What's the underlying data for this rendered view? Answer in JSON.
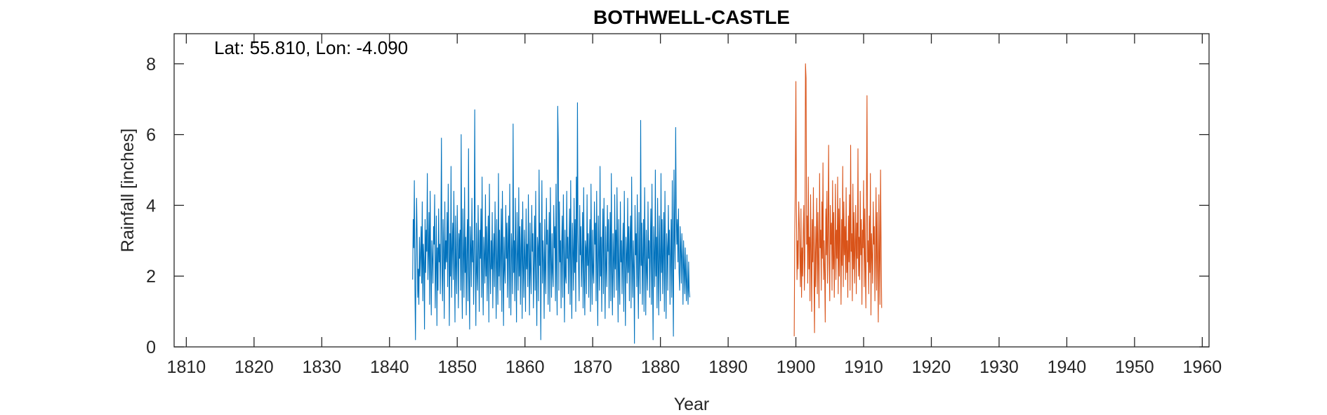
{
  "chart_data": {
    "type": "line",
    "title": "BOTHWELL-CASTLE",
    "annotation": "Lat: 55.810, Lon: -4.090",
    "xlabel": "Year",
    "ylabel": "Rainfall [inches]",
    "xlim": [
      1808.2,
      1961
    ],
    "ylim": [
      0,
      8.85
    ],
    "xticks": [
      1810,
      1820,
      1830,
      1840,
      1850,
      1860,
      1870,
      1880,
      1890,
      1900,
      1910,
      1920,
      1930,
      1940,
      1950,
      1960
    ],
    "yticks": [
      0,
      2,
      4,
      6,
      8
    ],
    "grid": false,
    "series": [
      {
        "color": "#0072BD",
        "monthly_start": [
          1843,
          6
        ],
        "values": [
          1.9,
          3.6,
          2.8,
          4.7,
          1.7,
          0.2,
          2.6,
          4.2,
          3.1,
          1.4,
          2.2,
          1.2,
          3.1,
          2.0,
          2.6,
          3.4,
          1.8,
          4.1,
          1.3,
          2.9,
          2.4,
          0.5,
          3.6,
          2.1,
          3.3,
          2.7,
          4.9,
          1.9,
          2.6,
          3.8,
          1.2,
          4.4,
          2.3,
          0.9,
          3.0,
          2.5,
          1.8,
          3.4,
          2.9,
          4.3,
          1.1,
          2.2,
          3.7,
          0.6,
          2.8,
          1.6,
          3.9,
          2.4,
          2.9,
          1.5,
          3.3,
          5.9,
          2.1,
          1.3,
          3.6,
          2.7,
          0.8,
          4.1,
          2.2,
          3.0,
          2.4,
          3.8,
          1.7,
          4.6,
          2.9,
          0.6,
          3.2,
          2.0,
          5.1,
          1.4,
          2.7,
          3.5,
          1.9,
          4.4,
          2.6,
          0.7,
          3.7,
          2.3,
          1.5,
          4.0,
          2.8,
          1.1,
          3.2,
          2.5,
          3.3,
          1.6,
          6.0,
          2.2,
          0.8,
          3.9,
          2.6,
          1.4,
          4.5,
          2.1,
          3.1,
          0.9,
          2.7,
          3.6,
          1.3,
          5.6,
          2.0,
          0.5,
          3.4,
          2.8,
          1.7,
          4.2,
          2.4,
          3.0,
          1.2,
          2.9,
          6.7,
          2.3,
          0.6,
          3.5,
          2.1,
          1.6,
          4.0,
          2.7,
          1.0,
          3.3,
          2.5,
          3.9,
          1.4,
          4.8,
          2.2,
          0.9,
          3.1,
          2.6,
          1.8,
          4.3,
          2.0,
          3.4,
          1.3,
          2.8,
          3.7,
          0.7,
          4.6,
          2.4,
          1.5,
          3.0,
          2.2,
          3.8,
          1.1,
          2.6,
          3.2,
          1.7,
          4.1,
          2.5,
          0.8,
          3.6,
          2.3,
          1.2,
          4.9,
          2.0,
          3.3,
          1.6,
          2.7,
          3.9,
          1.0,
          4.4,
          2.6,
          0.6,
          3.1,
          2.2,
          1.8,
          4.0,
          2.5,
          3.5,
          1.4,
          2.9,
          3.7,
          1.1,
          4.6,
          2.3,
          0.9,
          3.2,
          2.7,
          1.5,
          6.3,
          2.1,
          3.0,
          1.3,
          4.2,
          2.4,
          0.7,
          3.8,
          2.6,
          1.6,
          4.5,
          2.0,
          3.4,
          1.2,
          2.8,
          3.6,
          0.8,
          4.1,
          2.3,
          1.4,
          3.3,
          2.5,
          1.0,
          3.9,
          2.2,
          2.9,
          1.7,
          4.3,
          2.6,
          0.9,
          3.5,
          2.1,
          1.5,
          4.0,
          2.7,
          3.2,
          1.1,
          2.4,
          3.7,
          1.6,
          4.4,
          2.0,
          0.6,
          3.1,
          2.8,
          1.3,
          5.0,
          2.3,
          3.5,
          0.2,
          2.6,
          4.7,
          1.8,
          3.0,
          2.4,
          0.8,
          3.6,
          2.2,
          1.5,
          4.2,
          2.9,
          3.3,
          1.2,
          2.7,
          3.8,
          1.0,
          4.5,
          2.5,
          1.4,
          3.2,
          2.1,
          1.7,
          4.0,
          2.8,
          3.4,
          1.3,
          4.6,
          2.2,
          0.9,
          6.8,
          5.8,
          1.6,
          4.1,
          2.4,
          3.0,
          1.1,
          2.9,
          3.7,
          1.4,
          4.3,
          2.6,
          0.7,
          3.3,
          2.0,
          1.8,
          4.4,
          2.5,
          3.1,
          1.5,
          2.8,
          3.9,
          1.2,
          4.7,
          2.3,
          0.8,
          3.5,
          2.7,
          1.6,
          4.2,
          2.1,
          3.6,
          1.0,
          4.8,
          2.4,
          6.9,
          3.2,
          2.2,
          1.3,
          4.0,
          2.6,
          3.4,
          1.7,
          2.5,
          3.8,
          1.1,
          4.5,
          2.0,
          0.9,
          3.0,
          2.8,
          1.5,
          4.3,
          2.3,
          3.2,
          1.4,
          2.7,
          3.6,
          1.0,
          4.6,
          2.5,
          1.2,
          3.3,
          2.1,
          1.8,
          4.1,
          2.9,
          3.5,
          1.3,
          4.4,
          2.2,
          0.6,
          3.7,
          2.6,
          1.6,
          5.1,
          2.0,
          3.1,
          1.0,
          2.8,
          3.9,
          1.5,
          4.2,
          2.4,
          0.8,
          3.4,
          2.3,
          1.7,
          4.0,
          2.7,
          3.6,
          1.1,
          2.6,
          3.8,
          1.3,
          4.9,
          2.1,
          0.9,
          3.2,
          2.5,
          1.4,
          4.3,
          2.2,
          3.3,
          1.6,
          4.5,
          2.8,
          0.7,
          3.6,
          2.0,
          1.2,
          4.1,
          2.4,
          3.0,
          1.5,
          2.7,
          3.5,
          1.0,
          4.4,
          2.3,
          0.6,
          3.1,
          2.6,
          1.8,
          4.2,
          2.1,
          3.4,
          1.3,
          2.9,
          3.7,
          1.1,
          4.8,
          2.5,
          1.4,
          3.0,
          2.2,
          0.1,
          4.0,
          2.6,
          3.2,
          1.7,
          4.3,
          2.0,
          0.8,
          3.8,
          2.4,
          1.5,
          6.4,
          2.3,
          3.5,
          1.2,
          2.6,
          3.6,
          1.0,
          4.5,
          2.7,
          0.9,
          3.3,
          2.1,
          1.6,
          4.1,
          2.5,
          3.0,
          1.4,
          2.8,
          3.9,
          1.2,
          4.6,
          2.2,
          0.2,
          3.4,
          2.6,
          1.7,
          5.0,
          2.0,
          3.1,
          1.1,
          4.2,
          2.4,
          0.9,
          3.7,
          2.5,
          1.3,
          4.9,
          2.1,
          3.6,
          1.5,
          2.7,
          3.8,
          1.0,
          4.4,
          2.3,
          0.8,
          3.2,
          2.8,
          1.6,
          4.0,
          2.6,
          3.3,
          1.2,
          2.5,
          3.6,
          1.4,
          4.7,
          2.0,
          0.3,
          5.0,
          3.1,
          2.2,
          6.2,
          3.8,
          2.9,
          3.6,
          2.4,
          3.9,
          2.1,
          1.6,
          3.4,
          2.7,
          1.8,
          3.2,
          2.5,
          1.2,
          3.0,
          2.3,
          1.5,
          2.8,
          1.9,
          1.3,
          2.6,
          1.7,
          1.2,
          2.4,
          1.6,
          1.4
        ]
      },
      {
        "color": "#D95319",
        "monthly_start": [
          1899,
          10
        ],
        "values": [
          0.3,
          3.2,
          4.6,
          7.5,
          3.8,
          1.9,
          3.0,
          2.2,
          4.1,
          3.5,
          2.6,
          1.7,
          3.9,
          1.4,
          2.8,
          2.0,
          3.3,
          4.0,
          1.6,
          2.5,
          8.0,
          7.6,
          2.9,
          3.7,
          1.8,
          4.8,
          2.2,
          3.1,
          1.3,
          4.3,
          2.7,
          1.0,
          3.6,
          2.4,
          4.5,
          2.0,
          0.4,
          3.4,
          1.7,
          2.9,
          4.2,
          1.5,
          3.8,
          2.3,
          1.1,
          4.9,
          2.8,
          3.3,
          1.6,
          4.1,
          2.5,
          5.2,
          1.9,
          3.0,
          2.1,
          0.7,
          3.9,
          2.6,
          4.4,
          1.8,
          3.2,
          5.7,
          2.4,
          1.3,
          4.0,
          2.9,
          3.5,
          1.6,
          4.7,
          2.2,
          3.8,
          1.4,
          2.7,
          4.6,
          1.9,
          3.3,
          2.5,
          4.8,
          1.5,
          3.9,
          2.0,
          4.2,
          2.8,
          1.2,
          3.6,
          2.3,
          5.1,
          1.7,
          4.1,
          2.6,
          3.4,
          1.9,
          4.5,
          2.1,
          3.0,
          1.4,
          3.7,
          2.4,
          4.3,
          1.6,
          5.7,
          2.7,
          3.2,
          1.3,
          4.6,
          2.2,
          3.8,
          1.8,
          2.9,
          4.0,
          1.5,
          3.5,
          2.5,
          5.6,
          2.0,
          3.1,
          1.9,
          4.4,
          2.6,
          3.6,
          1.2,
          3.3,
          2.8,
          4.7,
          1.7,
          3.9,
          2.3,
          1.1,
          4.2,
          7.1,
          2.4,
          3.0,
          1.5,
          3.7,
          2.1,
          4.9,
          0.9,
          3.2,
          2.6,
          1.8,
          4.1,
          2.9,
          3.4,
          1.3,
          2.7,
          4.5,
          1.6,
          3.8,
          2.2,
          0.7,
          4.3,
          2.5,
          1.2,
          5.0,
          2.8,
          1.1
        ]
      }
    ]
  }
}
